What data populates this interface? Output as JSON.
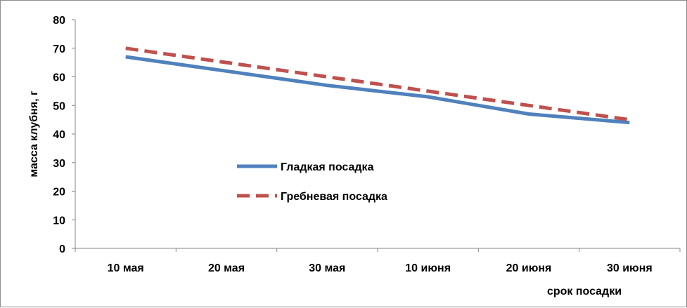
{
  "chart_data": {
    "type": "line",
    "title": "",
    "xlabel": "срок посадки",
    "ylabel": "масса клубня, г",
    "ylim": [
      0,
      80
    ],
    "yticks": [
      0,
      10,
      20,
      30,
      40,
      50,
      60,
      70,
      80
    ],
    "grid": false,
    "legend_position": "center-left inside",
    "categories": [
      "10 мая",
      "20 мая",
      "30 мая",
      "10 июня",
      "20 июня",
      "30 июня"
    ],
    "series": [
      {
        "name": "Гладкая посадка",
        "values": [
          67,
          62,
          57,
          53,
          47,
          44
        ],
        "color": "#4F81BD",
        "style": "solid"
      },
      {
        "name": "Гребневая посадка",
        "values": [
          70,
          65,
          60,
          55,
          50,
          45
        ],
        "color": "#C0504D",
        "style": "dashed"
      }
    ]
  }
}
